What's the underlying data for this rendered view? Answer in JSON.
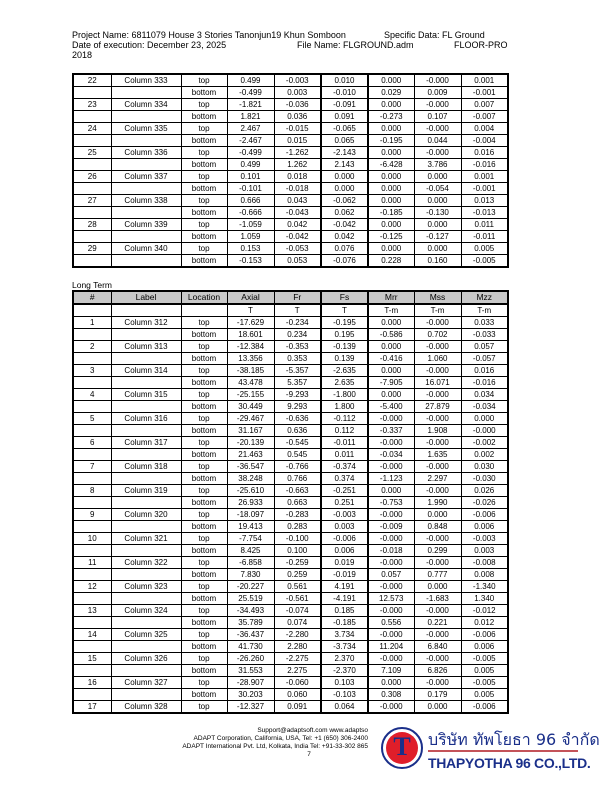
{
  "header": {
    "line1a": "Project Name: 6811079 House 3 Stories Tanonjun19 Khun Somboon",
    "line1b": "Specific Data: FL Ground",
    "line2a": "Date of execution: December 23, 2025",
    "line2b": "File Name: FLGROUND.adm",
    "line2c": "FLOOR-PRO",
    "line3": "2018"
  },
  "top_table": {
    "rows": [
      [
        "22",
        "Column 333",
        "top",
        "0.499",
        "-0.003",
        "0.010",
        "0.000",
        "-0.000",
        "0.001"
      ],
      [
        "",
        "",
        "bottom",
        "-0.499",
        "0.003",
        "-0.010",
        "0.029",
        "0.009",
        "-0.001"
      ],
      [
        "23",
        "Column 334",
        "top",
        "-1.821",
        "-0.036",
        "-0.091",
        "0.000",
        "-0.000",
        "0.007"
      ],
      [
        "",
        "",
        "bottom",
        "1.821",
        "0.036",
        "0.091",
        "-0.273",
        "0.107",
        "-0.007"
      ],
      [
        "24",
        "Column 335",
        "top",
        "2.467",
        "-0.015",
        "-0.065",
        "0.000",
        "-0.000",
        "0.004"
      ],
      [
        "",
        "",
        "bottom",
        "-2.467",
        "0.015",
        "0.065",
        "-0.195",
        "0.044",
        "-0.004"
      ],
      [
        "25",
        "Column 336",
        "top",
        "-0.499",
        "-1.262",
        "-2.143",
        "0.000",
        "-0.000",
        "0.016"
      ],
      [
        "",
        "",
        "bottom",
        "0.499",
        "1.262",
        "2.143",
        "-6.428",
        "3.786",
        "-0.016"
      ],
      [
        "26",
        "Column 337",
        "top",
        "0.101",
        "0.018",
        "0.000",
        "0.000",
        "0.000",
        "0.001"
      ],
      [
        "",
        "",
        "bottom",
        "-0.101",
        "-0.018",
        "0.000",
        "0.000",
        "-0.054",
        "-0.001"
      ],
      [
        "27",
        "Column 338",
        "top",
        "0.666",
        "0.043",
        "-0.062",
        "0.000",
        "0.000",
        "0.013"
      ],
      [
        "",
        "",
        "bottom",
        "-0.666",
        "-0.043",
        "0.062",
        "-0.185",
        "-0.130",
        "-0.013"
      ],
      [
        "28",
        "Column 339",
        "top",
        "-1.059",
        "0.042",
        "-0.042",
        "0.000",
        "0.000",
        "0.011"
      ],
      [
        "",
        "",
        "bottom",
        "1.059",
        "-0.042",
        "0.042",
        "-0.125",
        "-0.127",
        "-0.011"
      ],
      [
        "29",
        "Column 340",
        "top",
        "0.153",
        "-0.053",
        "0.076",
        "0.000",
        "0.000",
        "0.005"
      ],
      [
        "",
        "",
        "bottom",
        "-0.153",
        "0.053",
        "-0.076",
        "0.228",
        "0.160",
        "-0.005"
      ]
    ]
  },
  "long_term": {
    "title": "Long Term",
    "columns": [
      "#",
      "Label",
      "Location",
      "Axial",
      "Fr",
      "Fs",
      "Mrr",
      "Mss",
      "Mzz"
    ],
    "units": [
      "",
      "",
      "",
      "T",
      "T",
      "T",
      "T-m",
      "T-m",
      "T-m"
    ],
    "rows": [
      [
        "1",
        "Column 312",
        "top",
        "-17.629",
        "-0.234",
        "-0.195",
        "0.000",
        "-0.000",
        "0.033"
      ],
      [
        "",
        "",
        "bottom",
        "18.601",
        "0.234",
        "0.195",
        "-0.586",
        "0.702",
        "-0.033"
      ],
      [
        "2",
        "Column 313",
        "top",
        "-12.384",
        "-0.353",
        "-0.139",
        "0.000",
        "-0.000",
        "0.057"
      ],
      [
        "",
        "",
        "bottom",
        "13.356",
        "0.353",
        "0.139",
        "-0.416",
        "1.060",
        "-0.057"
      ],
      [
        "3",
        "Column 314",
        "top",
        "-38.185",
        "-5.357",
        "-2.635",
        "0.000",
        "-0.000",
        "0.016"
      ],
      [
        "",
        "",
        "bottom",
        "43.478",
        "5.357",
        "2.635",
        "-7.905",
        "16.071",
        "-0.016"
      ],
      [
        "4",
        "Column 315",
        "top",
        "-25.155",
        "-9.293",
        "-1.800",
        "0.000",
        "-0.000",
        "0.034"
      ],
      [
        "",
        "",
        "bottom",
        "30.449",
        "9.293",
        "1.800",
        "-5.400",
        "27.879",
        "-0.034"
      ],
      [
        "5",
        "Column 316",
        "top",
        "-29.467",
        "-0.636",
        "-0.112",
        "-0.000",
        "-0.000",
        "0.000"
      ],
      [
        "",
        "",
        "bottom",
        "31.167",
        "0.636",
        "0.112",
        "-0.337",
        "1.908",
        "-0.000"
      ],
      [
        "6",
        "Column 317",
        "top",
        "-20.139",
        "-0.545",
        "-0.011",
        "-0.000",
        "-0.000",
        "-0.002"
      ],
      [
        "",
        "",
        "bottom",
        "21.463",
        "0.545",
        "0.011",
        "-0.034",
        "1.635",
        "0.002"
      ],
      [
        "7",
        "Column 318",
        "top",
        "-36.547",
        "-0.766",
        "-0.374",
        "-0.000",
        "-0.000",
        "0.030"
      ],
      [
        "",
        "",
        "bottom",
        "38.248",
        "0.766",
        "0.374",
        "-1.123",
        "2.297",
        "-0.030"
      ],
      [
        "8",
        "Column 319",
        "top",
        "-25.610",
        "-0.663",
        "-0.251",
        "0.000",
        "-0.000",
        "0.026"
      ],
      [
        "",
        "",
        "bottom",
        "26.933",
        "0.663",
        "0.251",
        "-0.753",
        "1.990",
        "-0.026"
      ],
      [
        "9",
        "Column 320",
        "top",
        "-18.097",
        "-0.283",
        "-0.003",
        "-0.000",
        "0.000",
        "-0.006"
      ],
      [
        "",
        "",
        "bottom",
        "19.413",
        "0.283",
        "0.003",
        "-0.009",
        "0.848",
        "0.006"
      ],
      [
        "10",
        "Column 321",
        "top",
        "-7.754",
        "-0.100",
        "-0.006",
        "-0.000",
        "-0.000",
        "-0.003"
      ],
      [
        "",
        "",
        "bottom",
        "8.425",
        "0.100",
        "0.006",
        "-0.018",
        "0.299",
        "0.003"
      ],
      [
        "11",
        "Column 322",
        "top",
        "-6.858",
        "-0.259",
        "0.019",
        "-0.000",
        "-0.000",
        "-0.008"
      ],
      [
        "",
        "",
        "bottom",
        "7.830",
        "0.259",
        "-0.019",
        "0.057",
        "0.777",
        "0.008"
      ],
      [
        "12",
        "Column 323",
        "top",
        "-20.227",
        "0.561",
        "4.191",
        "-0.000",
        "0.000",
        "-1.340"
      ],
      [
        "",
        "",
        "bottom",
        "25.519",
        "-0.561",
        "-4.191",
        "12.573",
        "-1.683",
        "1.340"
      ],
      [
        "13",
        "Column 324",
        "top",
        "-34.493",
        "-0.074",
        "0.185",
        "-0.000",
        "-0.000",
        "-0.012"
      ],
      [
        "",
        "",
        "bottom",
        "35.789",
        "0.074",
        "-0.185",
        "0.556",
        "0.221",
        "0.012"
      ],
      [
        "14",
        "Column 325",
        "top",
        "-36.437",
        "-2.280",
        "3.734",
        "-0.000",
        "-0.000",
        "-0.006"
      ],
      [
        "",
        "",
        "bottom",
        "41.730",
        "2.280",
        "-3.734",
        "11.204",
        "6.840",
        "0.006"
      ],
      [
        "15",
        "Column 326",
        "top",
        "-26.260",
        "-2.275",
        "2.370",
        "-0.000",
        "-0.000",
        "-0.005"
      ],
      [
        "",
        "",
        "bottom",
        "31.553",
        "2.275",
        "-2.370",
        "7.109",
        "6.826",
        "0.005"
      ],
      [
        "16",
        "Column 327",
        "top",
        "-28.907",
        "-0.060",
        "0.103",
        "0.000",
        "-0.000",
        "-0.005"
      ],
      [
        "",
        "",
        "bottom",
        "30.203",
        "0.060",
        "-0.103",
        "0.308",
        "0.179",
        "0.005"
      ],
      [
        "17",
        "Column 328",
        "top",
        "-12.327",
        "0.091",
        "0.064",
        "-0.000",
        "0.000",
        "-0.006"
      ]
    ]
  },
  "footer": {
    "line1": "Support@adaptsoft.com     www.adaptso",
    "line2": "ADAPT Corporation, California, USA,   Tel: +1 (650) 306-2400",
    "line3": "ADAPT International Pvt. Ltd, Kolkata, India Tel: +91-33-302 865",
    "line4": "7"
  },
  "logo": {
    "letter": "T",
    "thai_name": "บริษัท ทัพโยธา 96 จำกัด",
    "english_name": "THAPYOTHA 96 CO.,LTD.",
    "colors": {
      "red": "#e01e2a",
      "blue": "#1a2f8a"
    }
  }
}
